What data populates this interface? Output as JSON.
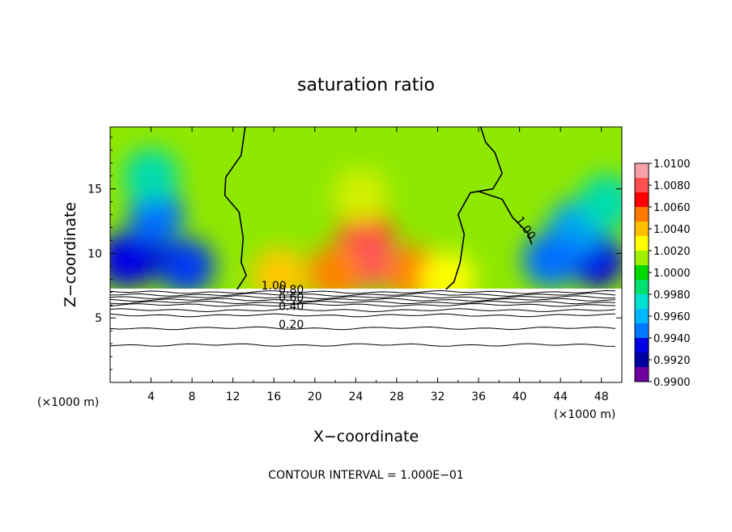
{
  "chart_data": {
    "type": "heatmap",
    "title": "saturation ratio",
    "xlabel": "X−coordinate",
    "ylabel": "Z−coordinate",
    "x_units_left": "(×1000 m)",
    "x_units_right": "(×1000 m)",
    "xlim": [
      0,
      50
    ],
    "ylim": [
      0,
      19.8
    ],
    "x_ticks": [
      4,
      8,
      12,
      16,
      20,
      24,
      28,
      32,
      36,
      40,
      44,
      48
    ],
    "y_ticks": [
      5,
      10,
      15
    ],
    "grid": false,
    "footer": "CONTOUR INTERVAL = 1.000E−01",
    "colorbar": {
      "placement": "right",
      "levels": [
        "1.0100",
        "1.0080",
        "1.0060",
        "1.0040",
        "1.0020",
        "1.0000",
        "0.9980",
        "0.9960",
        "0.9940",
        "0.9920",
        "0.9900"
      ],
      "colors": [
        "#f7a0a8",
        "#ff5050",
        "#ff0000",
        "#ff7a00",
        "#ffc000",
        "#ffff00",
        "#a0f000",
        "#00d800",
        "#00e070",
        "#00e0d0",
        "#00b8ff",
        "#0078ff",
        "#0000e0",
        "#0000a0",
        "#7000a0"
      ]
    },
    "contour_labels": [
      {
        "text": "1.00",
        "value": 1.0,
        "x": 40.3,
        "z": 11.8
      },
      {
        "text": "1.00",
        "value": 1.0,
        "x": 16.0,
        "z": 7.2
      },
      {
        "text": "0.80",
        "value": 0.8,
        "x": 17.7,
        "z": 6.9
      },
      {
        "text": "0.60",
        "value": 0.6,
        "x": 17.7,
        "z": 6.3
      },
      {
        "text": "0.40",
        "value": 0.4,
        "x": 17.7,
        "z": 5.6
      },
      {
        "text": "0.20",
        "value": 0.2,
        "x": 17.7,
        "z": 4.2
      }
    ],
    "lower_contours_z": [
      7.0,
      6.8,
      6.6,
      6.4,
      6.2,
      6.0,
      5.6,
      5.2,
      4.2,
      2.9
    ],
    "blobs": [
      {
        "x": 25.0,
        "z": 11.5,
        "value": 1.005
      },
      {
        "x": 25.0,
        "z": 9.5,
        "value": 1.008
      },
      {
        "x": 22.0,
        "z": 8.5,
        "value": 1.004
      },
      {
        "x": 29.5,
        "z": 8.5,
        "value": 1.004
      },
      {
        "x": 16.5,
        "z": 8.3,
        "value": 1.003
      },
      {
        "x": 33.0,
        "z": 8.0,
        "value": 1.002
      },
      {
        "x": 24.5,
        "z": 14.5,
        "value": 1.001
      },
      {
        "x": 3.5,
        "z": 10.0,
        "value": 0.991
      },
      {
        "x": 4.5,
        "z": 13.0,
        "value": 0.994
      },
      {
        "x": 1.5,
        "z": 9.5,
        "value": 0.992
      },
      {
        "x": 7.5,
        "z": 9.0,
        "value": 0.993
      },
      {
        "x": 4.0,
        "z": 16.0,
        "value": 0.997
      },
      {
        "x": 47.5,
        "z": 9.5,
        "value": 0.992
      },
      {
        "x": 45.5,
        "z": 12.0,
        "value": 0.995
      },
      {
        "x": 43.0,
        "z": 9.5,
        "value": 0.994
      },
      {
        "x": 48.5,
        "z": 14.0,
        "value": 0.997
      }
    ]
  }
}
